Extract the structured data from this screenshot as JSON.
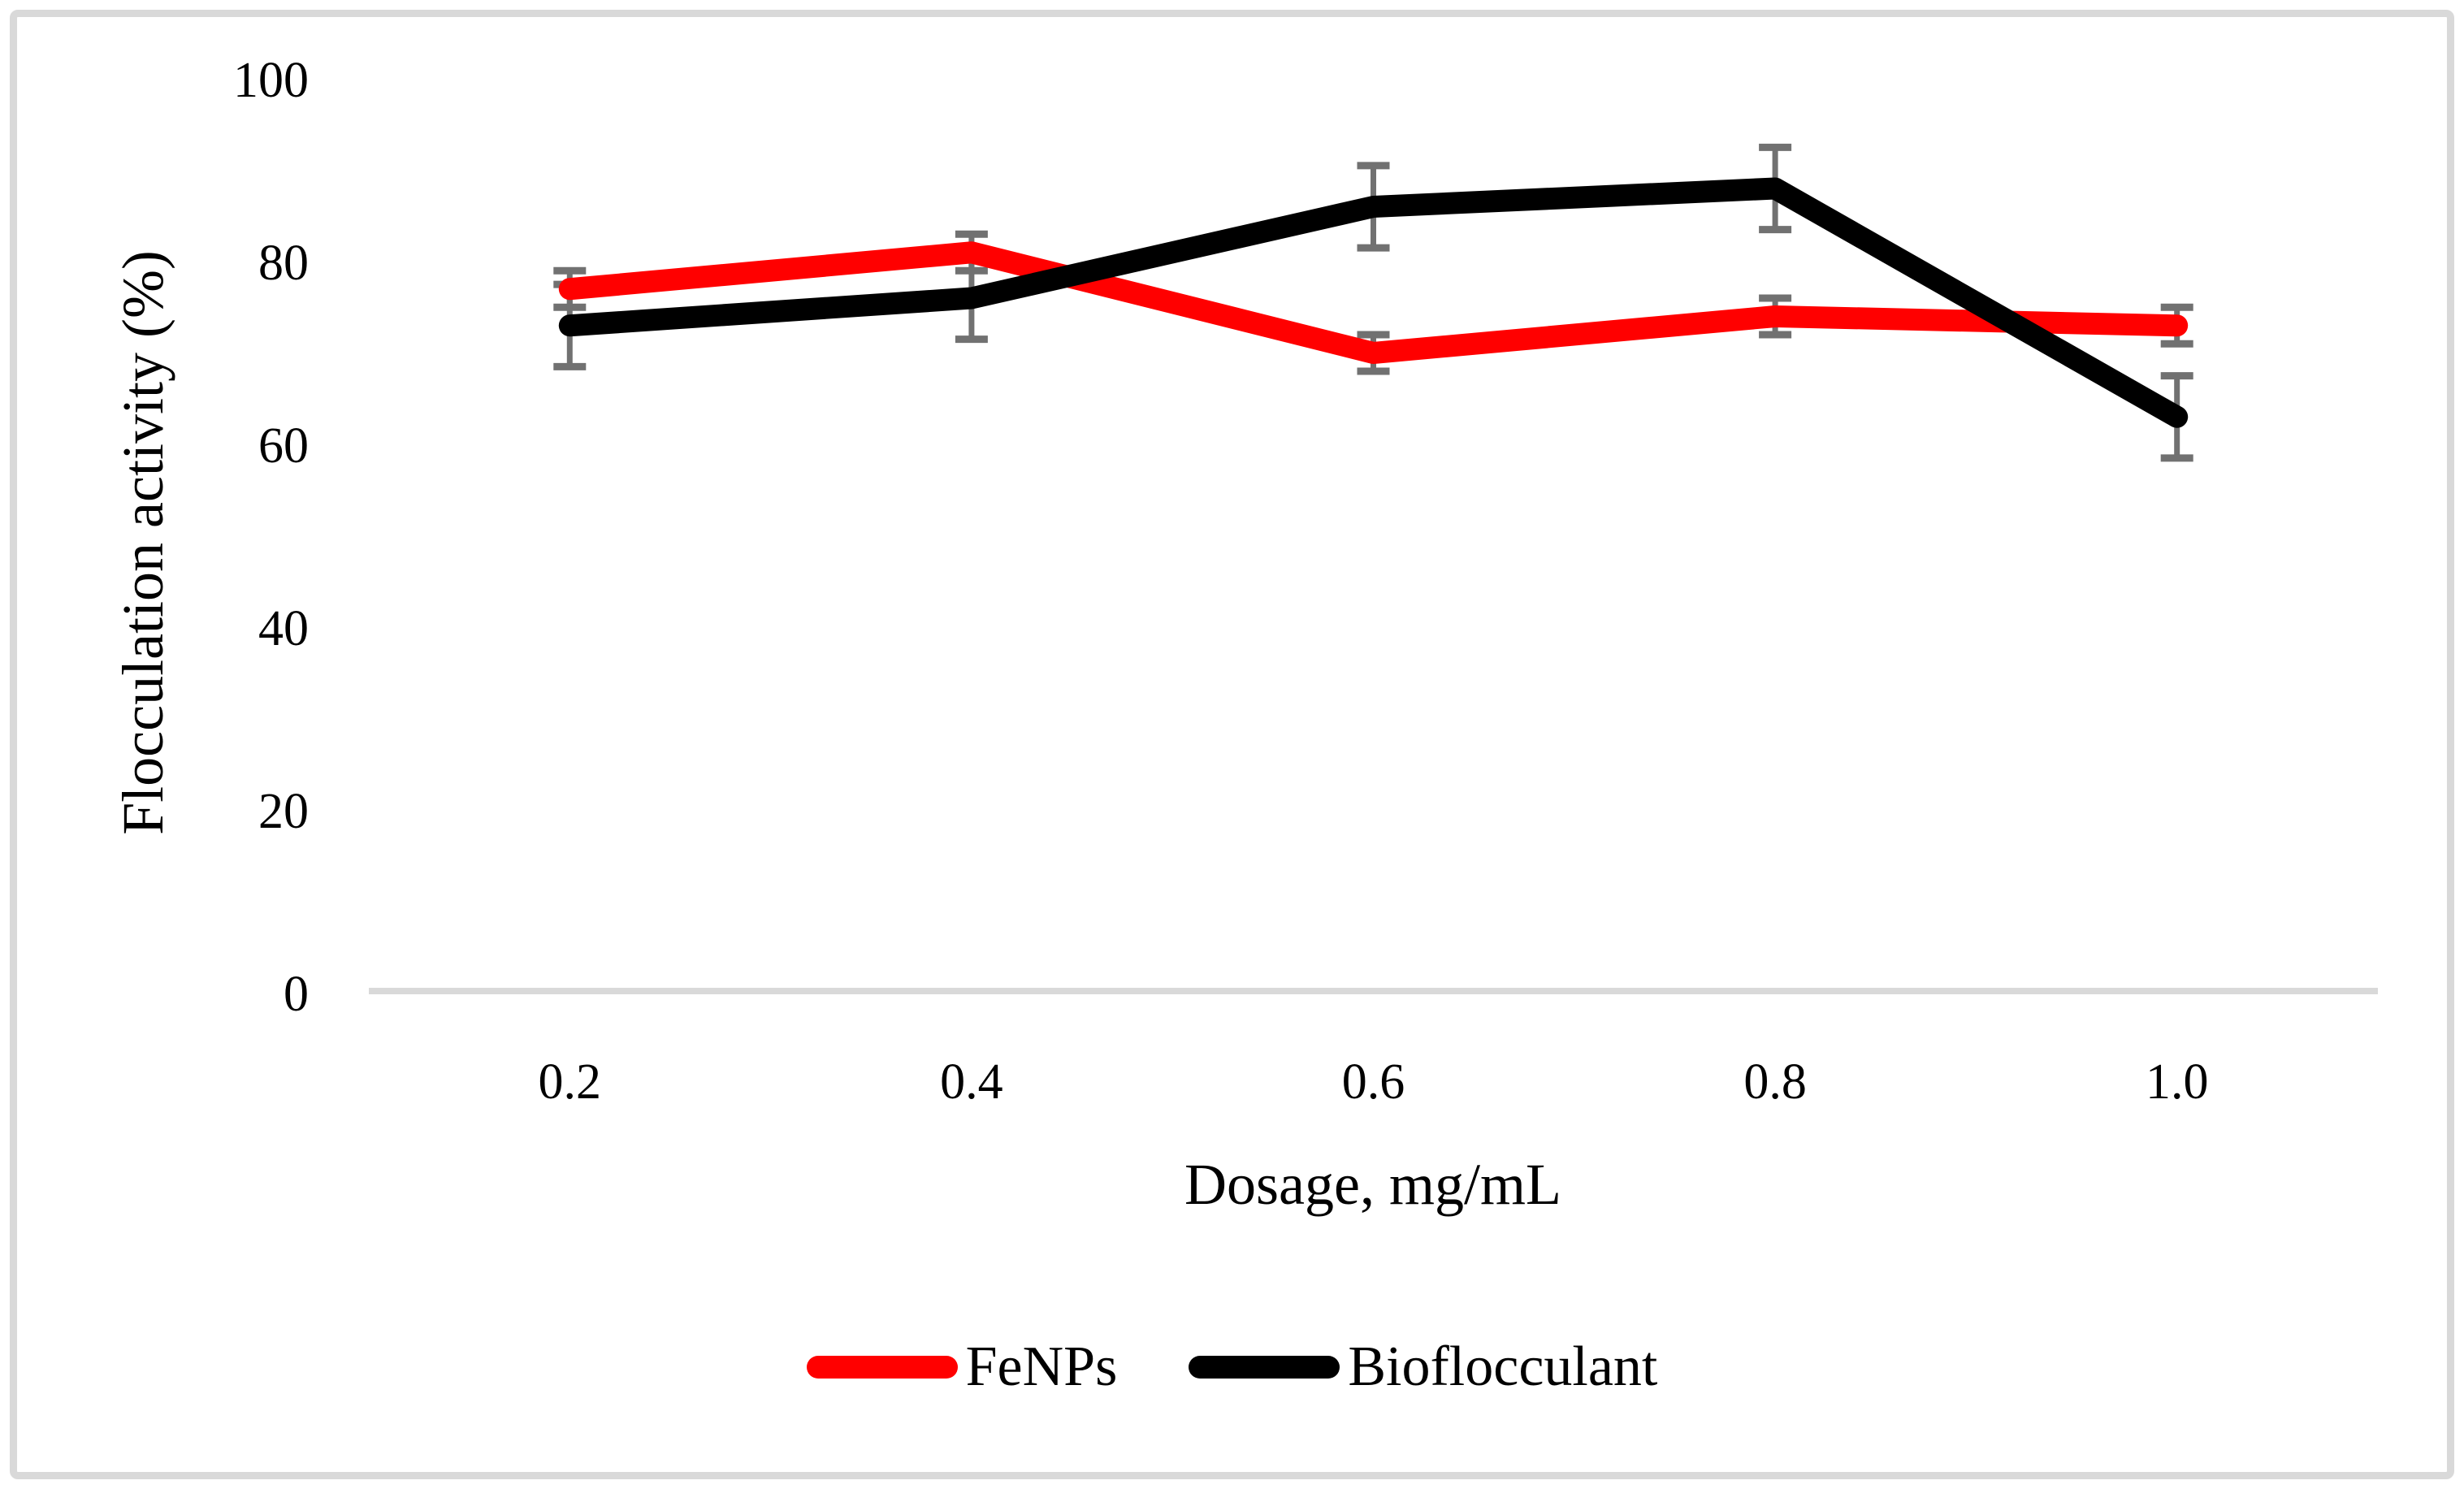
{
  "figure": {
    "background_color": "#ffffff",
    "border_color": "#d9d9d9"
  },
  "chart_data": {
    "type": "line",
    "title": "",
    "xlabel": "Dosage, mg/mL",
    "ylabel": "Flocculation activity (%)",
    "categories": [
      "0.2",
      "0.4",
      "0.6",
      "0.8",
      "1.0"
    ],
    "x": [
      0.2,
      0.4,
      0.6,
      0.8,
      1.0
    ],
    "yticks": [
      0,
      20,
      40,
      60,
      80,
      100
    ],
    "ylim": [
      0,
      100
    ],
    "grid": false,
    "legend_position": "bottom",
    "axis_line_color": "#d9d9d9",
    "error_bar_color": "#717171",
    "series": [
      {
        "name": "FeNPs",
        "color": "#ff0000",
        "values": [
          77,
          81,
          70,
          74,
          73
        ],
        "error": [
          2,
          2,
          2,
          2,
          2
        ]
      },
      {
        "name": "Bioflocculant",
        "color": "#000000",
        "values": [
          73,
          76,
          86,
          88,
          63
        ],
        "error": [
          4.5,
          4.5,
          4.5,
          4.5,
          4.5
        ]
      }
    ]
  }
}
